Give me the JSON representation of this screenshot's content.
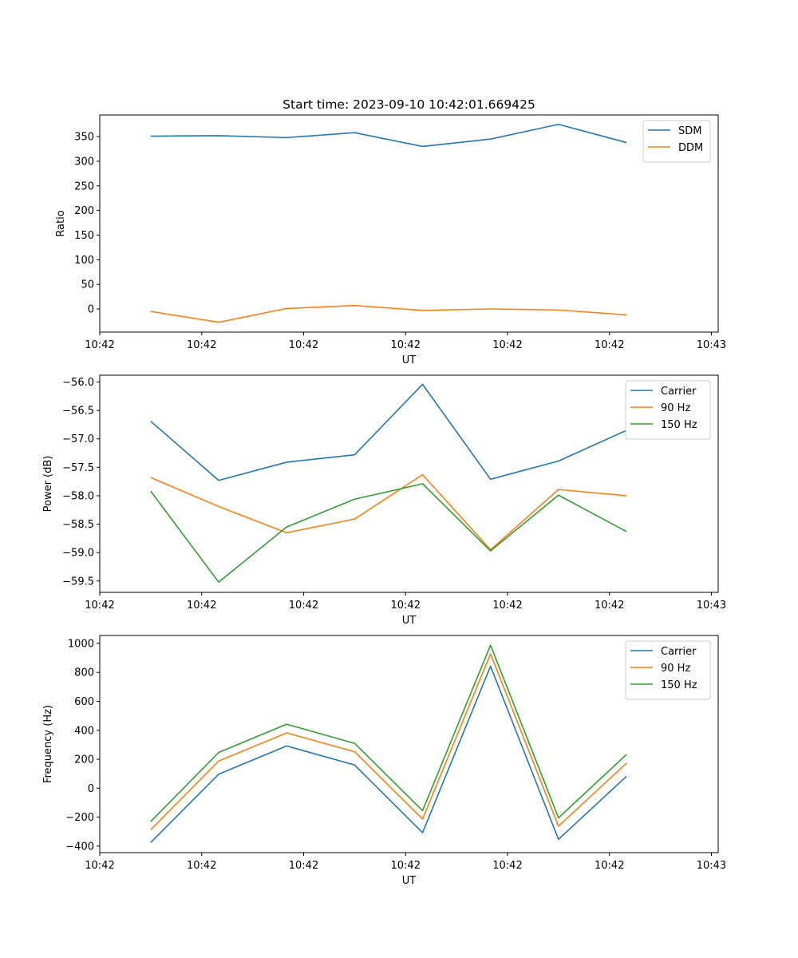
{
  "figure_title": "Start time: 2023-09-10 10:42:01.669425",
  "chart_data": [
    {
      "type": "line",
      "title": "Start time: 2023-09-10 10:42:01.669425",
      "xlabel": "UT",
      "ylabel": "Ratio",
      "x": [
        0,
        1,
        2,
        3,
        4,
        5,
        6,
        7
      ],
      "xlim": [
        -0.75,
        8.35
      ],
      "xticks": [
        {
          "pos": -0.75,
          "label": "10:42"
        },
        {
          "pos": 0.75,
          "label": "10:42"
        },
        {
          "pos": 2.25,
          "label": "10:42"
        },
        {
          "pos": 3.75,
          "label": "10:42"
        },
        {
          "pos": 5.25,
          "label": "10:42"
        },
        {
          "pos": 6.75,
          "label": "10:42"
        },
        {
          "pos": 8.25,
          "label": "10:43"
        }
      ],
      "ylim": [
        -47,
        394
      ],
      "yticks": [
        0,
        50,
        100,
        150,
        200,
        250,
        300,
        350
      ],
      "ytick_labels": [
        "0",
        "50",
        "100",
        "150",
        "200",
        "250",
        "300",
        "350"
      ],
      "legend_position": "upper right",
      "series": [
        {
          "name": "SDM",
          "color": "#1f77b4",
          "values": [
            351,
            352,
            348,
            358,
            330,
            345,
            375,
            338
          ]
        },
        {
          "name": "DDM",
          "color": "#ff7f0e",
          "values": [
            -5,
            -27,
            1,
            7,
            -3,
            0,
            -2,
            -12
          ]
        }
      ]
    },
    {
      "type": "line",
      "title": "",
      "xlabel": "UT",
      "ylabel": "Power (dB)",
      "x": [
        0,
        1,
        2,
        3,
        4,
        5,
        6,
        7
      ],
      "xlim": [
        -0.75,
        8.35
      ],
      "xticks": [
        {
          "pos": -0.75,
          "label": "10:42"
        },
        {
          "pos": 0.75,
          "label": "10:42"
        },
        {
          "pos": 2.25,
          "label": "10:42"
        },
        {
          "pos": 3.75,
          "label": "10:42"
        },
        {
          "pos": 5.25,
          "label": "10:42"
        },
        {
          "pos": 6.75,
          "label": "10:42"
        },
        {
          "pos": 8.25,
          "label": "10:43"
        }
      ],
      "ylim": [
        -59.7,
        -55.88
      ],
      "yticks": [
        -59.5,
        -59.0,
        -58.5,
        -58.0,
        -57.5,
        -57.0,
        -56.5,
        -56.0
      ],
      "ytick_labels": [
        "−59.5",
        "−59.0",
        "−58.5",
        "−58.0",
        "−57.5",
        "−57.0",
        "−56.5",
        "−56.0"
      ],
      "legend_position": "upper right",
      "series": [
        {
          "name": "Carrier",
          "color": "#1f77b4",
          "values": [
            -56.69,
            -57.73,
            -57.41,
            -57.28,
            -56.04,
            -57.71,
            -57.39,
            -56.85
          ]
        },
        {
          "name": "90 Hz",
          "color": "#ff7f0e",
          "values": [
            -57.68,
            -58.19,
            -58.65,
            -58.41,
            -57.63,
            -58.95,
            -57.89,
            -58.0
          ]
        },
        {
          "name": "150 Hz",
          "color": "#2ca02c",
          "values": [
            -57.92,
            -59.52,
            -58.55,
            -58.06,
            -57.79,
            -58.97,
            -57.99,
            -58.63
          ]
        }
      ]
    },
    {
      "type": "line",
      "title": "",
      "xlabel": "UT",
      "ylabel": "Frequency (Hz)",
      "x": [
        0,
        1,
        2,
        3,
        4,
        5,
        6,
        7
      ],
      "xlim": [
        -0.75,
        8.35
      ],
      "xticks": [
        {
          "pos": -0.75,
          "label": "10:42"
        },
        {
          "pos": 0.75,
          "label": "10:42"
        },
        {
          "pos": 2.25,
          "label": "10:42"
        },
        {
          "pos": 3.75,
          "label": "10:42"
        },
        {
          "pos": 5.25,
          "label": "10:42"
        },
        {
          "pos": 6.75,
          "label": "10:42"
        },
        {
          "pos": 8.25,
          "label": "10:43"
        }
      ],
      "ylim": [
        -445,
        1055
      ],
      "yticks": [
        -400,
        -200,
        0,
        200,
        400,
        600,
        800,
        1000
      ],
      "ytick_labels": [
        "−400",
        "−200",
        "0",
        "200",
        "400",
        "600",
        "800",
        "1000"
      ],
      "legend_position": "upper right",
      "series": [
        {
          "name": "Carrier",
          "color": "#1f77b4",
          "values": [
            -375,
            97,
            292,
            160,
            -307,
            843,
            -353,
            82
          ]
        },
        {
          "name": "90 Hz",
          "color": "#ff7f0e",
          "values": [
            -287,
            188,
            382,
            252,
            -213,
            928,
            -262,
            173
          ]
        },
        {
          "name": "150 Hz",
          "color": "#2ca02c",
          "values": [
            -230,
            247,
            442,
            310,
            -155,
            988,
            -205,
            233
          ]
        }
      ]
    }
  ]
}
